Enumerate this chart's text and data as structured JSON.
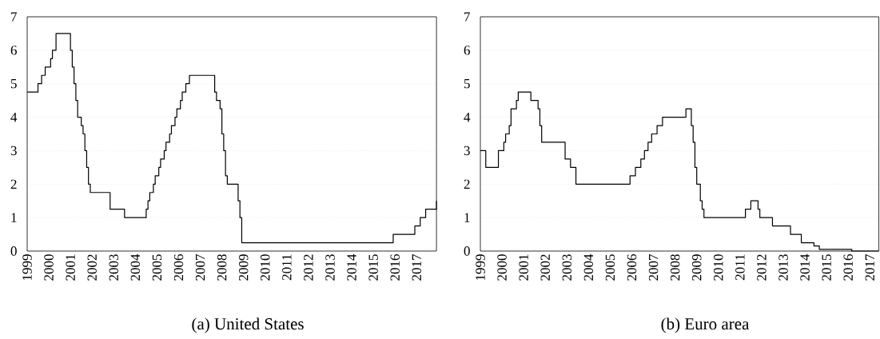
{
  "chart_data": [
    {
      "type": "step",
      "title": "(a) United States",
      "color": "#000000",
      "x": [
        "1999-01",
        "1999-07",
        "1999-09",
        "1999-11",
        "2000-02",
        "2000-03",
        "2000-05",
        "2001-01",
        "2001-02",
        "2001-03",
        "2001-04",
        "2001-05",
        "2001-07",
        "2001-08",
        "2001-09",
        "2001-10",
        "2001-11",
        "2001-12",
        "2002-11",
        "2003-07",
        "2004-07",
        "2004-08",
        "2004-09",
        "2004-11",
        "2004-12",
        "2005-02",
        "2005-03",
        "2005-05",
        "2005-06",
        "2005-08",
        "2005-09",
        "2005-11",
        "2005-12",
        "2006-02",
        "2006-03",
        "2006-05",
        "2006-07",
        "2007-09",
        "2007-10",
        "2007-12",
        "2008-01",
        "2008-02",
        "2008-03",
        "2008-04",
        "2008-10",
        "2008-11",
        "2008-12",
        "2015-12",
        "2016-12",
        "2017-03",
        "2017-06",
        "2017-12"
      ],
      "values": [
        4.75,
        5.0,
        5.25,
        5.5,
        5.75,
        6.0,
        6.5,
        6.0,
        5.5,
        5.0,
        4.5,
        4.0,
        3.75,
        3.5,
        3.0,
        2.5,
        2.0,
        1.75,
        1.25,
        1.0,
        1.25,
        1.5,
        1.75,
        2.0,
        2.25,
        2.5,
        2.75,
        3.0,
        3.25,
        3.5,
        3.75,
        4.0,
        4.25,
        4.5,
        4.75,
        5.0,
        5.25,
        4.75,
        4.5,
        4.25,
        3.5,
        3.0,
        2.25,
        2.0,
        1.5,
        1.0,
        0.25,
        0.5,
        0.75,
        1.0,
        1.25,
        1.5
      ],
      "xlim": [
        "1999-01",
        "2017-12"
      ],
      "xticks": [
        "1999",
        "2000",
        "2001",
        "2002",
        "2003",
        "2004",
        "2005",
        "2006",
        "2007",
        "2008",
        "2009",
        "2010",
        "2011",
        "2012",
        "2013",
        "2014",
        "2015",
        "2016",
        "2017"
      ],
      "ylim": [
        0,
        7
      ],
      "yticks": [
        0,
        1,
        2,
        3,
        4,
        5,
        6,
        7
      ],
      "grid": "y"
    },
    {
      "type": "step",
      "title": "(b) Euro area",
      "color": "#000000",
      "x": [
        "1999-01",
        "1999-04",
        "1999-11",
        "2000-02",
        "2000-03",
        "2000-05",
        "2000-06",
        "2000-09",
        "2000-10",
        "2001-05",
        "2001-09",
        "2001-10",
        "2001-11",
        "2002-12",
        "2003-03",
        "2003-06",
        "2005-12",
        "2006-03",
        "2006-06",
        "2006-08",
        "2006-10",
        "2006-12",
        "2007-03",
        "2007-06",
        "2008-07",
        "2008-10",
        "2008-11",
        "2008-12",
        "2009-01",
        "2009-03",
        "2009-04",
        "2009-05",
        "2011-04",
        "2011-07",
        "2011-11",
        "2011-12",
        "2012-07",
        "2013-05",
        "2013-11",
        "2014-06",
        "2014-09",
        "2016-03",
        "2017-06"
      ],
      "values": [
        3.0,
        2.5,
        3.0,
        3.25,
        3.5,
        3.75,
        4.25,
        4.5,
        4.75,
        4.5,
        4.25,
        3.75,
        3.25,
        2.75,
        2.5,
        2.0,
        2.25,
        2.5,
        2.75,
        3.0,
        3.25,
        3.5,
        3.75,
        4.0,
        4.25,
        3.75,
        3.25,
        2.5,
        2.0,
        1.5,
        1.25,
        1.0,
        1.25,
        1.5,
        1.25,
        1.0,
        0.75,
        0.5,
        0.25,
        0.15,
        0.05,
        0.0,
        0.0
      ],
      "xlim": [
        "1999-01",
        "2017-06"
      ],
      "xticks": [
        "1999",
        "2000",
        "2001",
        "2002",
        "2003",
        "2004",
        "2005",
        "2006",
        "2007",
        "2008",
        "2009",
        "2010",
        "2011",
        "2012",
        "2013",
        "2014",
        "2015",
        "2016",
        "2017"
      ],
      "ylim": [
        0,
        7
      ],
      "yticks": [
        0,
        1,
        2,
        3,
        4,
        5,
        6,
        7
      ],
      "grid": "y"
    }
  ]
}
